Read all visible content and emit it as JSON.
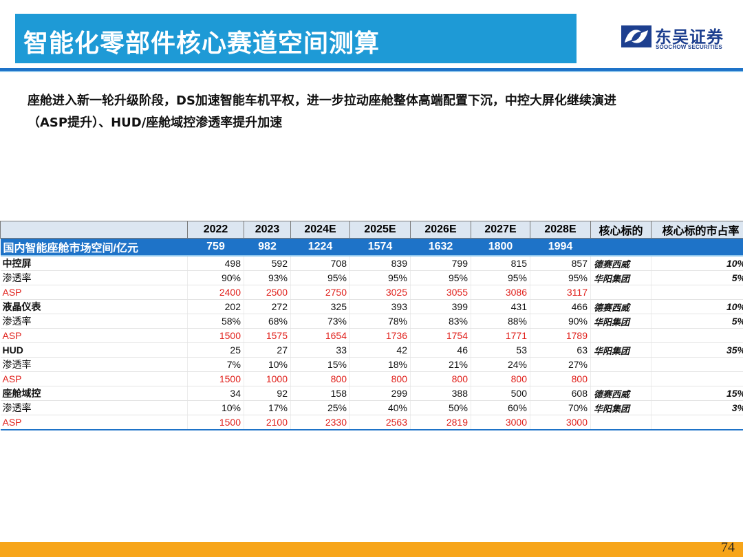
{
  "header": {
    "title": "智能化零部件核心赛道空间测算",
    "logo_cn": "东吴证券",
    "logo_en": "SOOCHOW SECURITIES"
  },
  "intro": {
    "line1": "座舱进入新一轮升级阶段，DS加速智能车机平权，进一步拉动座舱整体高端配置下沉，中控大屏化继续演进",
    "line2": "（ASP提升）、HUD/座舱域控渗透率提升加速"
  },
  "table": {
    "columns": [
      "",
      "2022",
      "2023",
      "2024E",
      "2025E",
      "2026E",
      "2027E",
      "2028E",
      "核心标的",
      "核心标的市占率"
    ],
    "total_row": [
      "国内智能座舱市场空间/亿元",
      "759",
      "982",
      "1224",
      "1574",
      "1632",
      "1800",
      "1994",
      "",
      ""
    ],
    "rows": [
      {
        "label": "中控屏",
        "kind": "cat",
        "values": [
          "498",
          "592",
          "708",
          "839",
          "799",
          "815",
          "857"
        ],
        "company": "德赛西威",
        "share": "10%"
      },
      {
        "label": "渗透率",
        "kind": "rate",
        "values": [
          "90%",
          "93%",
          "95%",
          "95%",
          "95%",
          "95%",
          "95%"
        ],
        "company": "华阳集团",
        "share": "5%"
      },
      {
        "label": "ASP",
        "kind": "asp",
        "values": [
          "2400",
          "2500",
          "2750",
          "3025",
          "3055",
          "3086",
          "3117"
        ],
        "company": "",
        "share": ""
      },
      {
        "label": "液晶仪表",
        "kind": "cat",
        "values": [
          "202",
          "272",
          "325",
          "393",
          "399",
          "431",
          "466"
        ],
        "company": "德赛西威",
        "share": "10%"
      },
      {
        "label": "渗透率",
        "kind": "rate",
        "values": [
          "58%",
          "68%",
          "73%",
          "78%",
          "83%",
          "88%",
          "90%"
        ],
        "company": "华阳集团",
        "share": "5%"
      },
      {
        "label": "ASP",
        "kind": "asp",
        "values": [
          "1500",
          "1575",
          "1654",
          "1736",
          "1754",
          "1771",
          "1789"
        ],
        "company": "",
        "share": ""
      },
      {
        "label": "HUD",
        "kind": "cat",
        "values": [
          "25",
          "27",
          "33",
          "42",
          "46",
          "53",
          "63"
        ],
        "company": "华阳集团",
        "share": "35%"
      },
      {
        "label": "渗透率",
        "kind": "rate",
        "values": [
          "7%",
          "10%",
          "15%",
          "18%",
          "21%",
          "24%",
          "27%"
        ],
        "company": "",
        "share": ""
      },
      {
        "label": "ASP",
        "kind": "asp",
        "values": [
          "1500",
          "1000",
          "800",
          "800",
          "800",
          "800",
          "800"
        ],
        "company": "",
        "share": ""
      },
      {
        "label": "座舱域控",
        "kind": "cat",
        "values": [
          "34",
          "92",
          "158",
          "299",
          "388",
          "500",
          "608"
        ],
        "company": "德赛西威",
        "share": "15%"
      },
      {
        "label": "渗透率",
        "kind": "rate",
        "values": [
          "10%",
          "17%",
          "25%",
          "40%",
          "50%",
          "60%",
          "70%"
        ],
        "company": "华阳集团",
        "share": "3%"
      },
      {
        "label": "ASP",
        "kind": "asp",
        "values": [
          "1500",
          "2100",
          "2330",
          "2563",
          "2819",
          "3000",
          "3000"
        ],
        "company": "",
        "share": ""
      }
    ]
  },
  "footer": {
    "page_number": "74",
    "accent_color": "#f7a51a"
  },
  "colors": {
    "brand_blue": "#1e9ad6",
    "header_blue": "#1e73c8",
    "asp_red": "#e0201b"
  }
}
